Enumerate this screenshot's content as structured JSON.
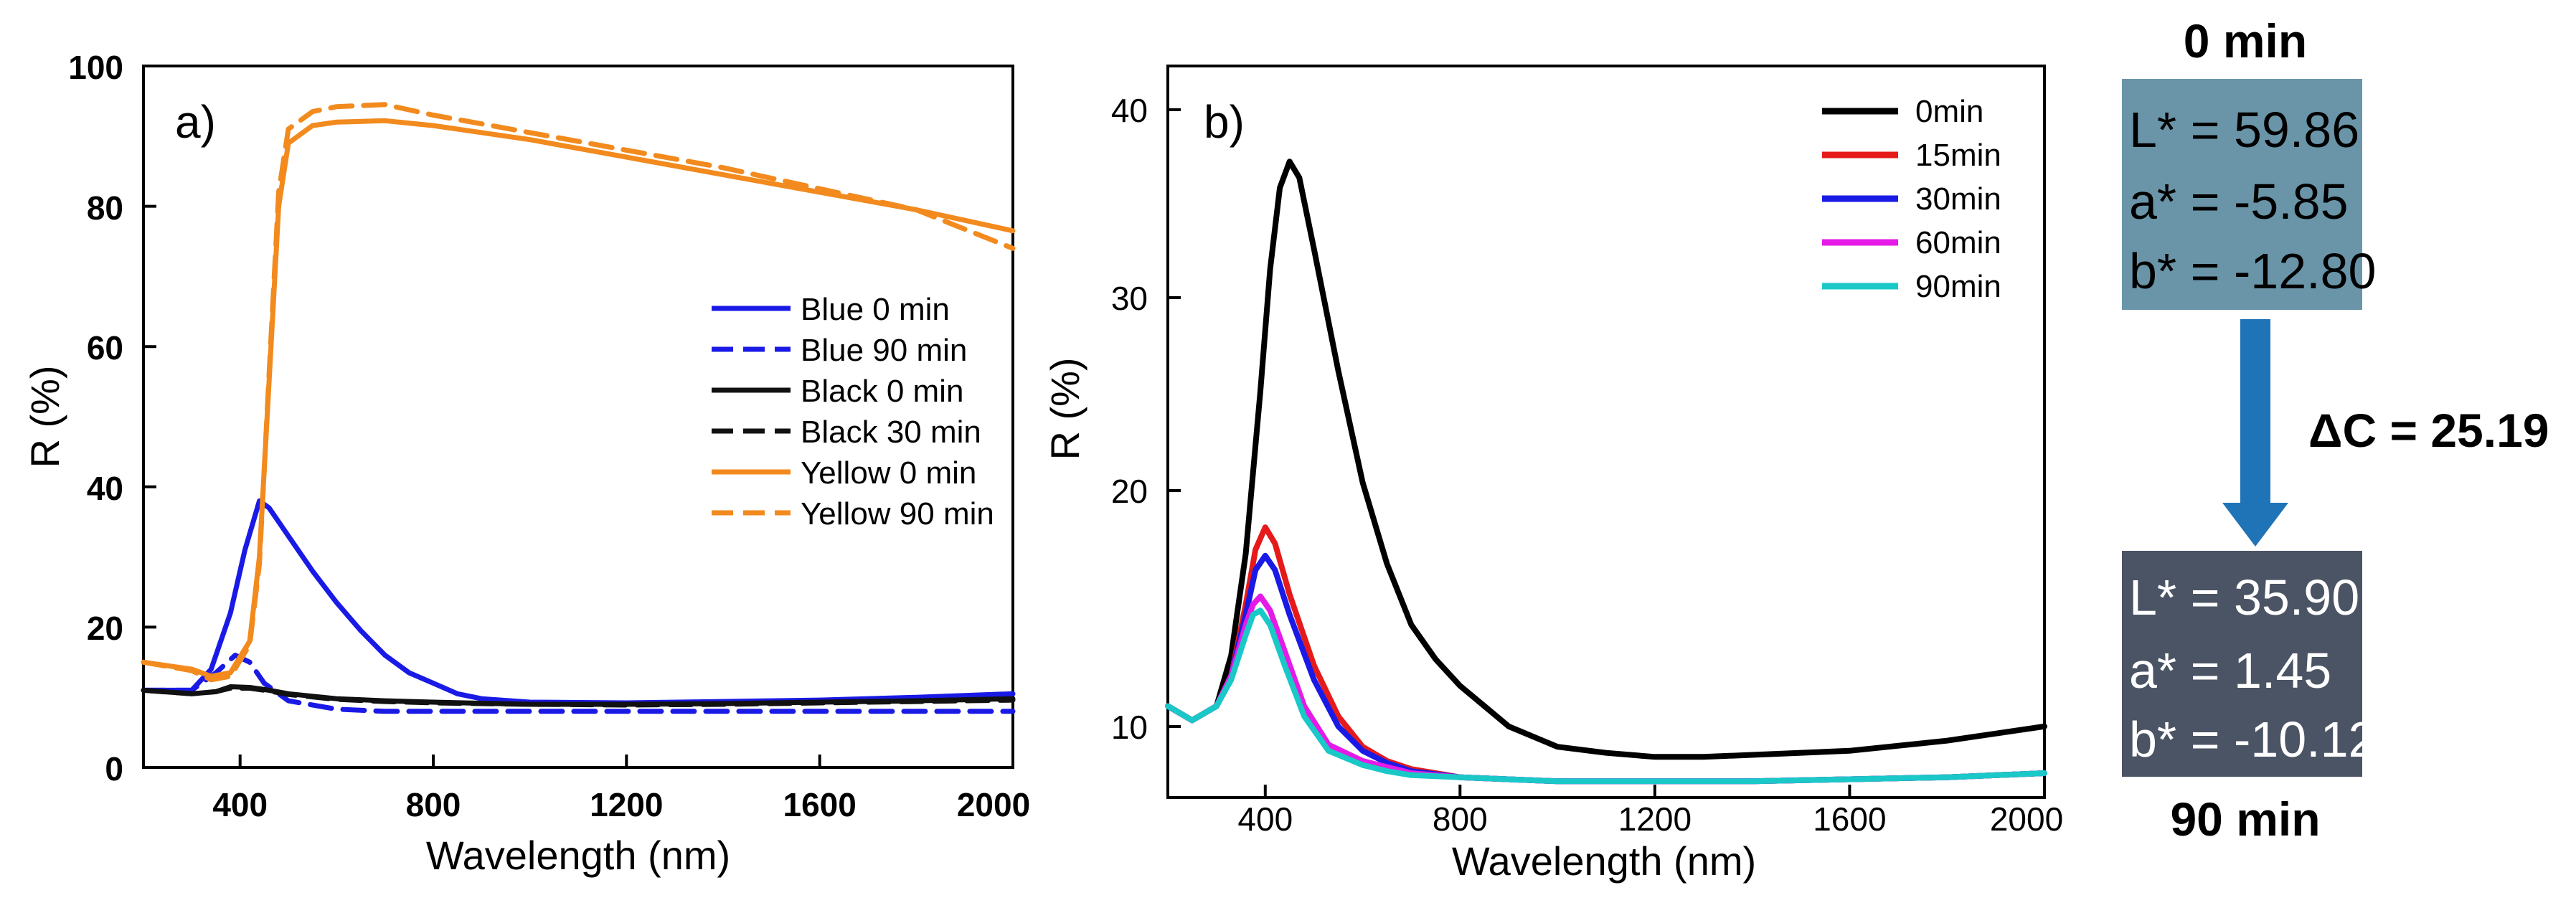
{
  "chart_data": [
    {
      "id": "a",
      "type": "line",
      "panel_label": "a)",
      "xlabel": "Wavelength (nm)",
      "ylabel": "R (%)",
      "xlim": [
        200,
        2000
      ],
      "ylim": [
        0,
        100
      ],
      "xticks": [
        "400",
        "800",
        "1200",
        "1600",
        "2000"
      ],
      "yticks": [
        "0",
        "20",
        "40",
        "60",
        "80",
        "100"
      ],
      "legend_position": "center-right",
      "series": [
        {
          "name": "Blue 0 min",
          "color": "#1a1ae6",
          "dash": "solid",
          "x": [
            200,
            300,
            340,
            380,
            410,
            440,
            460,
            500,
            550,
            600,
            650,
            700,
            750,
            800,
            850,
            900,
            1000,
            1200,
            1400,
            1600,
            1800,
            2000
          ],
          "y": [
            11,
            11,
            14,
            22,
            31,
            38,
            37,
            33,
            28,
            23.5,
            19.5,
            16,
            13.5,
            12,
            10.5,
            9.8,
            9.3,
            9.2,
            9.4,
            9.6,
            10,
            10.5
          ]
        },
        {
          "name": "Blue 90 min",
          "color": "#1a1ae6",
          "dash": "dashed",
          "x": [
            200,
            300,
            350,
            390,
            420,
            450,
            500,
            600,
            700,
            800,
            900,
            1000,
            1200,
            1400,
            1600,
            1800,
            2000
          ],
          "y": [
            11,
            11,
            13.5,
            16,
            15,
            12,
            9.5,
            8.3,
            8,
            8,
            8,
            8,
            8,
            8,
            8,
            8,
            8
          ]
        },
        {
          "name": "Black 0 min",
          "color": "#111111",
          "dash": "solid",
          "x": [
            200,
            300,
            350,
            380,
            420,
            460,
            500,
            600,
            700,
            800,
            1000,
            1200,
            1400,
            1600,
            1800,
            2000
          ],
          "y": [
            11,
            10.5,
            10.8,
            11.5,
            11.4,
            11,
            10.5,
            9.8,
            9.5,
            9.3,
            9,
            9,
            9.1,
            9.3,
            9.5,
            9.8
          ]
        },
        {
          "name": "Black 30 min",
          "color": "#111111",
          "dash": "dashed",
          "x": [
            200,
            300,
            350,
            380,
            420,
            460,
            500,
            600,
            700,
            800,
            1000,
            1200,
            1400,
            1600,
            1800,
            2000
          ],
          "y": [
            11,
            10.5,
            10.8,
            11.3,
            11.3,
            10.9,
            10.4,
            9.7,
            9.4,
            9.2,
            9,
            8.9,
            9,
            9.2,
            9.4,
            9.6
          ]
        },
        {
          "name": "Yellow 0 min",
          "color": "#f28a1e",
          "dash": "solid",
          "x": [
            200,
            300,
            340,
            380,
            420,
            440,
            460,
            480,
            500,
            550,
            600,
            700,
            800,
            1000,
            1200,
            1400,
            1600,
            1800,
            2000
          ],
          "y": [
            15,
            14,
            13,
            13.5,
            18,
            30,
            55,
            80,
            89,
            91.5,
            92,
            92.2,
            91.5,
            89.5,
            87,
            84.5,
            82,
            79.5,
            76.5
          ]
        },
        {
          "name": "Yellow 90 min",
          "color": "#f28a1e",
          "dash": "dashed",
          "x": [
            200,
            300,
            340,
            380,
            420,
            440,
            460,
            480,
            500,
            550,
            600,
            700,
            800,
            1000,
            1200,
            1400,
            1600,
            1800,
            2000
          ],
          "y": [
            15,
            13.8,
            12.5,
            13,
            17.5,
            29,
            56,
            82,
            91,
            93.5,
            94.2,
            94.5,
            93,
            90.5,
            88,
            85.5,
            82.5,
            79.5,
            74
          ]
        }
      ]
    },
    {
      "id": "b",
      "type": "line",
      "panel_label": "b)",
      "xlabel": "Wavelength (nm)",
      "ylabel": "R (%)",
      "xlim": [
        200,
        2000
      ],
      "ylim": [
        7,
        43
      ],
      "xticks": [
        "400",
        "800",
        "1200",
        "1600",
        "2000"
      ],
      "yticks": [
        "10",
        "20",
        "30",
        "40"
      ],
      "legend_position": "top-right",
      "series": [
        {
          "name": "0min",
          "color": "#000000",
          "x": [
            200,
            250,
            300,
            330,
            360,
            390,
            410,
            430,
            450,
            470,
            500,
            550,
            600,
            650,
            700,
            750,
            800,
            850,
            900,
            1000,
            1100,
            1200,
            1300,
            1400,
            1600,
            1800,
            2000
          ],
          "y": [
            11.5,
            10.8,
            11.5,
            14,
            19,
            27,
            33,
            37,
            38.3,
            37.5,
            34,
            28,
            22.5,
            18.5,
            15.5,
            13.8,
            12.5,
            11.5,
            10.5,
            9.5,
            9.2,
            9,
            9,
            9.1,
            9.3,
            9.8,
            10.5
          ]
        },
        {
          "name": "15min",
          "color": "#e61a1a",
          "x": [
            200,
            250,
            300,
            330,
            360,
            380,
            400,
            420,
            450,
            500,
            550,
            600,
            650,
            700,
            800,
            1000,
            1200,
            1400,
            1600,
            1800,
            2000
          ],
          "y": [
            11.5,
            10.8,
            11.5,
            13,
            16.5,
            19.2,
            20.3,
            19.5,
            17,
            13.5,
            11,
            9.5,
            8.8,
            8.4,
            8,
            7.8,
            7.8,
            7.8,
            7.9,
            8,
            8.2
          ]
        },
        {
          "name": "30min",
          "color": "#1a1ae6",
          "x": [
            200,
            250,
            300,
            330,
            360,
            380,
            400,
            420,
            450,
            500,
            550,
            600,
            650,
            700,
            800,
            1000,
            1200,
            1400,
            1600,
            1800,
            2000
          ],
          "y": [
            11.5,
            10.8,
            11.5,
            13,
            16,
            18.2,
            18.9,
            18.2,
            16,
            12.8,
            10.5,
            9.3,
            8.7,
            8.3,
            8,
            7.8,
            7.8,
            7.8,
            7.9,
            8,
            8.2
          ]
        },
        {
          "name": "60min",
          "color": "#e61ae6",
          "x": [
            200,
            250,
            300,
            330,
            360,
            375,
            390,
            410,
            440,
            480,
            530,
            600,
            650,
            700,
            800,
            1000,
            1200,
            1400,
            1600,
            1800,
            2000
          ],
          "y": [
            11.5,
            10.8,
            11.5,
            13,
            15.5,
            16.5,
            16.9,
            16.2,
            14.2,
            11.5,
            9.6,
            8.8,
            8.5,
            8.2,
            8,
            7.8,
            7.8,
            7.8,
            7.9,
            8,
            8.2
          ]
        },
        {
          "name": "90min",
          "color": "#1ac8c8",
          "x": [
            200,
            250,
            300,
            330,
            360,
            375,
            390,
            410,
            440,
            480,
            530,
            600,
            650,
            700,
            800,
            1000,
            1200,
            1400,
            1600,
            1800,
            2000
          ],
          "y": [
            11.5,
            10.8,
            11.5,
            12.8,
            15,
            16,
            16.2,
            15.5,
            13.5,
            11,
            9.3,
            8.6,
            8.3,
            8.1,
            8,
            7.8,
            7.8,
            7.8,
            7.9,
            8,
            8.2
          ]
        }
      ]
    }
  ],
  "color_panel": {
    "top_label": "0 min",
    "top_box": {
      "color": "#6a95a8",
      "lines": [
        "L* = 59.86",
        "a* = -5.85",
        "b* = -12.80"
      ]
    },
    "delta_label": "ΔC = 25.19",
    "arrow_color": "#1f74b8",
    "bottom_box": {
      "color": "#4b5464",
      "lines": [
        "L* = 35.90",
        "a* = 1.45",
        "b* = -10.12"
      ]
    },
    "bottom_label": "90 min"
  }
}
